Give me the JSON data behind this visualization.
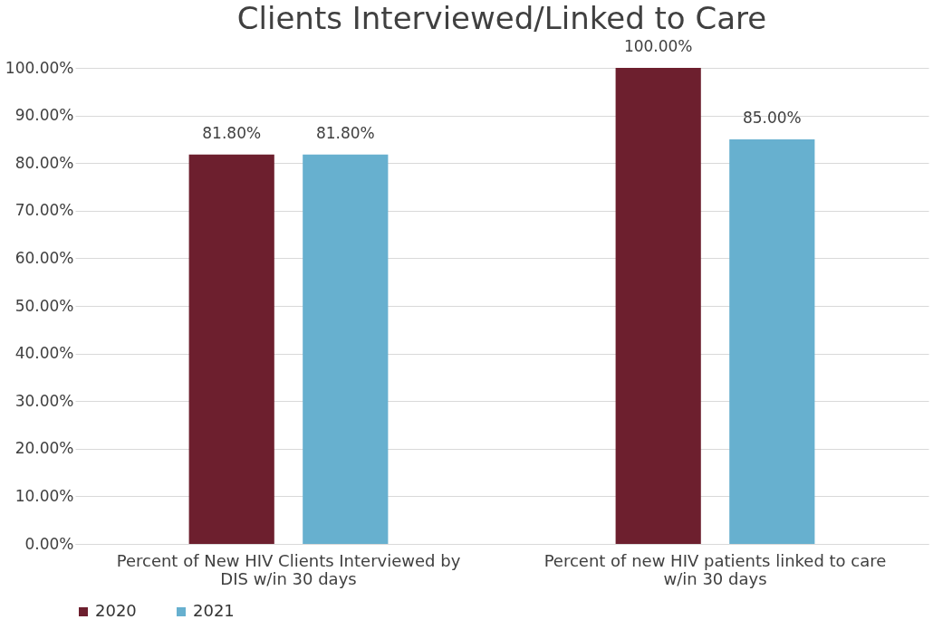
{
  "chart_data": {
    "type": "bar",
    "title": "Clients Interviewed/Linked to Care",
    "categories": [
      "Percent of New HIV Clients Interviewed by DIS w/in 30 days",
      "Percent of new HIV patients linked to care w/in 30 days"
    ],
    "series": [
      {
        "name": "2020",
        "color": "#6d1f2e",
        "values": [
          81.8,
          100
        ],
        "value_labels": [
          "81.80%",
          "100.00%"
        ]
      },
      {
        "name": "2021",
        "color": "#67b0cf",
        "values": [
          81.8,
          85
        ],
        "value_labels": [
          "81.80%",
          "85.00%"
        ]
      }
    ],
    "ylim": [
      0,
      100
    ],
    "yticks": [
      {
        "value": 0,
        "label": "0.00%"
      },
      {
        "value": 10,
        "label": "10.00%"
      },
      {
        "value": 20,
        "label": "20.00%"
      },
      {
        "value": 30,
        "label": "30.00%"
      },
      {
        "value": 40,
        "label": "40.00%"
      },
      {
        "value": 50,
        "label": "50.00%"
      },
      {
        "value": 60,
        "label": "60.00%"
      },
      {
        "value": 70,
        "label": "70.00%"
      },
      {
        "value": 80,
        "label": "80.00%"
      },
      {
        "value": 90,
        "label": "90.00%"
      },
      {
        "value": 100,
        "label": "100.00%"
      }
    ],
    "grid": "y",
    "legend": "bottom"
  }
}
